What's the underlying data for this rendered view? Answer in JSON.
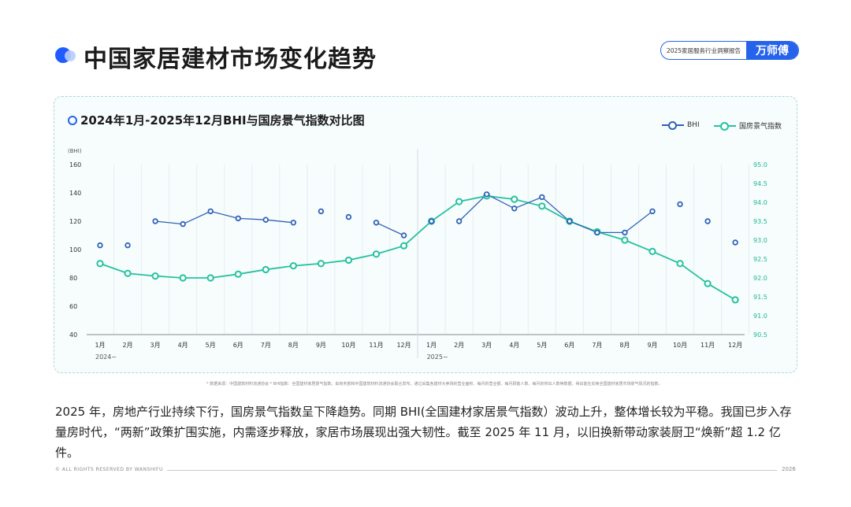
{
  "header": {
    "title": "中国家居建材市场变化趋势",
    "report_label": "2025家居服务行业洞察报告",
    "brand": "万师傅"
  },
  "chart_data": {
    "type": "line",
    "title": "2024年1月-2025年12月BHI与国房景气指数对比图",
    "ylabel_left": "(BHI)",
    "yticks_left": [
      "160",
      "140",
      "120",
      "100",
      "80",
      "60",
      "40"
    ],
    "yticks_right": [
      "95.0",
      "94.5",
      "94.0",
      "93.5",
      "93.0",
      "92.5",
      "92.0",
      "91.5",
      "91.0",
      "90.5"
    ],
    "ylim_left": [
      40,
      160
    ],
    "ylim_right": [
      90.5,
      95.0
    ],
    "categories": [
      "1月",
      "2月",
      "3月",
      "4月",
      "5月",
      "6月",
      "7月",
      "8月",
      "9月",
      "10月",
      "11月",
      "12月",
      "1月",
      "2月",
      "3月",
      "4月",
      "5月",
      "6月",
      "7月",
      "8月",
      "9月",
      "10月",
      "11月",
      "12月"
    ],
    "year_labels": [
      {
        "index": 0,
        "label": "2024~"
      },
      {
        "index": 12,
        "label": "2025~"
      }
    ],
    "legend_position": "top-right",
    "series": [
      {
        "name": "BHI",
        "axis": "left",
        "color": "#2f62b8",
        "values": [
          103,
          103,
          120,
          118,
          127,
          122,
          121,
          119,
          127,
          123,
          119,
          110,
          120,
          120,
          139,
          129,
          137,
          120,
          112,
          112,
          127,
          132,
          120,
          105
        ],
        "segments": [
          [
            2,
            7
          ],
          [
            10,
            11
          ],
          [
            13,
            20
          ]
        ]
      },
      {
        "name": "国房景气指数",
        "axis": "right",
        "color": "#25c2a0",
        "values": [
          92.38,
          92.12,
          92.05,
          92.0,
          92.0,
          92.1,
          92.22,
          92.32,
          92.38,
          92.47,
          92.63,
          92.85,
          93.5,
          94.02,
          94.17,
          94.08,
          93.9,
          93.5,
          93.22,
          93.0,
          92.7,
          92.38,
          91.85,
          91.42
        ]
      }
    ]
  },
  "source_note": "* 数据来源：中国建筑材料流通协会  * BHI指数：全国建材家居景气指数，由商务部和中国建筑材料流通协会联合发布，通过采集各建材大卖场的营业面积、每月的营业额、每月顾客人数、每月的供出人数等数据，得出能在反映全国建材家居市场景气情况的指数。",
  "body_text": "2025 年，房地产行业持续下行，国房景气指数呈下降趋势。同期 BHI(全国建材家居景气指数）波动上升，整体增长较为平稳。我国已步入存量房时代，“两新”政策扩围实施，内需逐步释放，家居市场展现出强大韧性。截至 2025 年 11 月，以旧换新带动家装厨卫“焕新”超 1.2 亿件。",
  "footer": {
    "left": "© ALL RIGHTS RESERVED BY WANSHIFU",
    "right": "2026"
  }
}
